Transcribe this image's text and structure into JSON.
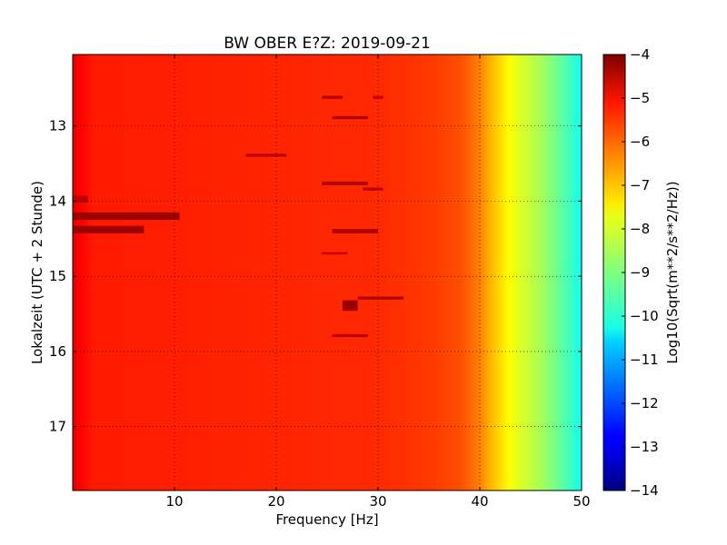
{
  "chart_data": {
    "type": "heatmap",
    "title": "BW OBER E?Z: 2019-09-21",
    "xlabel": "Frequency [Hz]",
    "ylabel": "Lokalzeit (UTC + 2 Stunde)",
    "xlim": [
      0,
      50
    ],
    "ylim": [
      12.05,
      17.85
    ],
    "x_ticks": [
      10,
      20,
      30,
      40,
      50
    ],
    "x_tick_labels": [
      "10",
      "20",
      "30",
      "40",
      "50"
    ],
    "y_ticks": [
      13,
      14,
      15,
      16,
      17
    ],
    "y_tick_labels": [
      "13",
      "14",
      "15",
      "16",
      "17"
    ],
    "y_inverted": true,
    "grid": true,
    "colormap": "jet",
    "colorbar": {
      "label": "Log10(Sqrt(m**2/s**2/Hz))",
      "range": [
        -14,
        -4
      ],
      "ticks": [
        -4,
        -5,
        -6,
        -7,
        -8,
        -9,
        -10,
        -11,
        -12,
        -13,
        -14
      ],
      "tick_labels": [
        "−4",
        "−5",
        "−6",
        "−7",
        "−8",
        "−9",
        "−10",
        "−11",
        "−12",
        "−13",
        "−14"
      ]
    },
    "background_profile": [
      {
        "hz": 0,
        "value": -4.9
      },
      {
        "hz": 0.5,
        "value": -5.2
      },
      {
        "hz": 2,
        "value": -5.5
      },
      {
        "hz": 10,
        "value": -5.55
      },
      {
        "hz": 20,
        "value": -5.6
      },
      {
        "hz": 30,
        "value": -5.65
      },
      {
        "hz": 35,
        "value": -5.8
      },
      {
        "hz": 38,
        "value": -6.0
      },
      {
        "hz": 40,
        "value": -6.5
      },
      {
        "hz": 41,
        "value": -7.0
      },
      {
        "hz": 42,
        "value": -7.4
      },
      {
        "hz": 43,
        "value": -7.8
      },
      {
        "hz": 44,
        "value": -8.1
      },
      {
        "hz": 46,
        "value": -8.6
      },
      {
        "hz": 48,
        "value": -9.3
      },
      {
        "hz": 50,
        "value": -10.1
      }
    ],
    "features": [
      {
        "t_start": 14.15,
        "t_end": 14.25,
        "f_start": 0,
        "f_end": 10.5,
        "value": -4.3
      },
      {
        "t_start": 14.33,
        "t_end": 14.43,
        "f_start": 0,
        "f_end": 7,
        "value": -4.3
      },
      {
        "t_start": 13.93,
        "t_end": 14.02,
        "f_start": 0,
        "f_end": 1.5,
        "value": -4.6
      },
      {
        "t_start": 12.6,
        "t_end": 12.64,
        "f_start": 24.5,
        "f_end": 26.5,
        "value": -4.5
      },
      {
        "t_start": 12.6,
        "t_end": 12.64,
        "f_start": 29.5,
        "f_end": 30.5,
        "value": -4.6
      },
      {
        "t_start": 12.87,
        "t_end": 12.91,
        "f_start": 25.5,
        "f_end": 29,
        "value": -4.5
      },
      {
        "t_start": 13.37,
        "t_end": 13.41,
        "f_start": 17,
        "f_end": 21,
        "value": -4.6
      },
      {
        "t_start": 13.74,
        "t_end": 13.79,
        "f_start": 24.5,
        "f_end": 29,
        "value": -4.5
      },
      {
        "t_start": 13.82,
        "t_end": 13.86,
        "f_start": 28.5,
        "f_end": 30.5,
        "value": -4.6
      },
      {
        "t_start": 14.37,
        "t_end": 14.43,
        "f_start": 25.5,
        "f_end": 30,
        "value": -4.5
      },
      {
        "t_start": 15.27,
        "t_end": 15.31,
        "f_start": 28,
        "f_end": 32.5,
        "value": -4.5
      },
      {
        "t_start": 15.32,
        "t_end": 15.46,
        "f_start": 26.5,
        "f_end": 28,
        "value": -4.3
      },
      {
        "t_start": 15.77,
        "t_end": 15.81,
        "f_start": 25.5,
        "f_end": 29,
        "value": -4.6
      },
      {
        "t_start": 14.68,
        "t_end": 14.71,
        "f_start": 24.5,
        "f_end": 27,
        "value": -4.7
      }
    ]
  }
}
